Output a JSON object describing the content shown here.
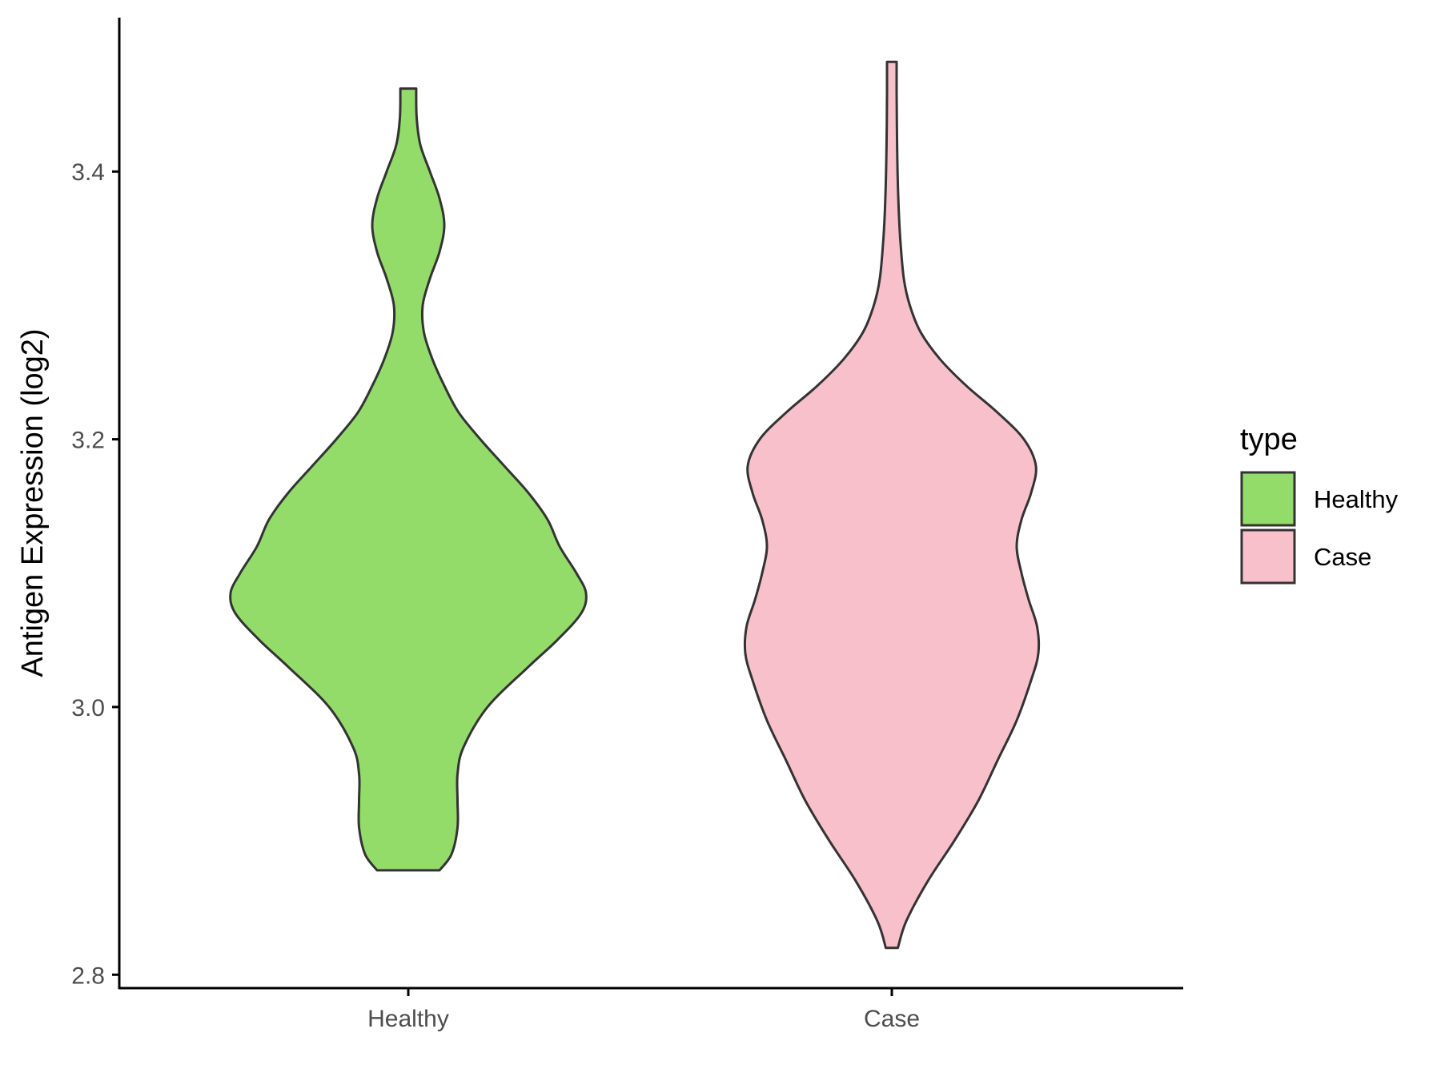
{
  "chart_data": {
    "type": "violin",
    "title": "",
    "xlabel": "",
    "ylabel": "Antigen Expression (log2)",
    "ylim": [
      2.79,
      3.515
    ],
    "yticks": [
      2.8,
      3.0,
      3.2,
      3.4
    ],
    "ytick_labels": [
      "2.8",
      "3.0",
      "3.2",
      "3.4"
    ],
    "grid": false,
    "categories": [
      "Healthy",
      "Case"
    ],
    "legend": {
      "title": "type",
      "placement": "right",
      "entries": [
        "Healthy",
        "Case"
      ]
    },
    "series": [
      {
        "name": "Healthy",
        "color": "#93dc6a",
        "min": 2.878,
        "max": 3.462,
        "profile": [
          [
            2.878,
            0.13
          ],
          [
            2.89,
            0.18
          ],
          [
            2.91,
            0.205
          ],
          [
            2.93,
            0.205
          ],
          [
            2.95,
            0.205
          ],
          [
            2.97,
            0.23
          ],
          [
            3.0,
            0.33
          ],
          [
            3.03,
            0.5
          ],
          [
            3.05,
            0.62
          ],
          [
            3.07,
            0.72
          ],
          [
            3.085,
            0.74
          ],
          [
            3.1,
            0.7
          ],
          [
            3.12,
            0.63
          ],
          [
            3.14,
            0.58
          ],
          [
            3.16,
            0.5
          ],
          [
            3.18,
            0.4
          ],
          [
            3.2,
            0.3
          ],
          [
            3.22,
            0.21
          ],
          [
            3.24,
            0.15
          ],
          [
            3.26,
            0.1
          ],
          [
            3.28,
            0.065
          ],
          [
            3.3,
            0.06
          ],
          [
            3.32,
            0.09
          ],
          [
            3.34,
            0.13
          ],
          [
            3.36,
            0.15
          ],
          [
            3.38,
            0.13
          ],
          [
            3.4,
            0.09
          ],
          [
            3.42,
            0.05
          ],
          [
            3.44,
            0.035
          ],
          [
            3.462,
            0.033
          ]
        ]
      },
      {
        "name": "Case",
        "color": "#f8c0cb",
        "min": 2.82,
        "max": 3.482,
        "profile": [
          [
            2.82,
            0.025
          ],
          [
            2.84,
            0.06
          ],
          [
            2.87,
            0.15
          ],
          [
            2.9,
            0.26
          ],
          [
            2.93,
            0.36
          ],
          [
            2.96,
            0.44
          ],
          [
            2.99,
            0.52
          ],
          [
            3.02,
            0.58
          ],
          [
            3.04,
            0.61
          ],
          [
            3.06,
            0.605
          ],
          [
            3.08,
            0.57
          ],
          [
            3.1,
            0.54
          ],
          [
            3.12,
            0.52
          ],
          [
            3.14,
            0.54
          ],
          [
            3.16,
            0.58
          ],
          [
            3.18,
            0.6
          ],
          [
            3.2,
            0.55
          ],
          [
            3.22,
            0.44
          ],
          [
            3.24,
            0.31
          ],
          [
            3.26,
            0.2
          ],
          [
            3.28,
            0.12
          ],
          [
            3.3,
            0.075
          ],
          [
            3.32,
            0.05
          ],
          [
            3.35,
            0.035
          ],
          [
            3.38,
            0.027
          ],
          [
            3.42,
            0.022
          ],
          [
            3.46,
            0.02
          ],
          [
            3.482,
            0.02
          ]
        ]
      }
    ]
  }
}
